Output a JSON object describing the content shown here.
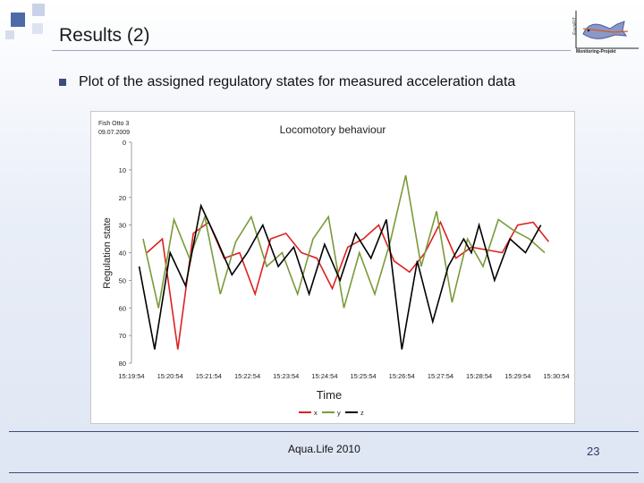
{
  "slide": {
    "title": "Results (2)",
    "bullet": "Plot of the assigned regulatory states for measured acceleration data",
    "footer": "Aqua.Life 2010",
    "page_number": "23",
    "logo": {
      "vertical_text": "FischFIT",
      "caption": "Monitoring-Projekt"
    }
  },
  "colors": {
    "accent": "#3b4d7e",
    "x": "#e02020",
    "y": "#7a9a3a",
    "z": "#000000"
  },
  "chart_data": {
    "type": "line",
    "title": "Locomotory behaviour",
    "annotation": [
      "Fish Otto 3",
      "09.07.2009"
    ],
    "xlabel": "Time",
    "ylabel": "Regulation state",
    "y_inverted": true,
    "ylim": [
      0,
      80
    ],
    "yticks": [
      0,
      10,
      20,
      30,
      40,
      50,
      60,
      70,
      80
    ],
    "xticks": [
      "15:19:54",
      "15:20:54",
      "15:21:54",
      "15:22:54",
      "15:23:54",
      "15:24:54",
      "15:25:54",
      "15:26:54",
      "15:27:54",
      "15:28:54",
      "15:29:54",
      "15:30:54"
    ],
    "xlim_minutes": [
      0,
      11
    ],
    "grid": false,
    "legend_position": "bottom",
    "series": [
      {
        "name": "x",
        "color": "#e02020",
        "x": [
          0.4,
          0.8,
          1.2,
          1.6,
          2.0,
          2.4,
          2.8,
          3.2,
          3.6,
          4.0,
          4.4,
          4.8,
          5.2,
          5.6,
          6.0,
          6.4,
          6.8,
          7.2,
          7.6,
          8.0,
          8.4,
          8.8,
          9.2,
          9.6,
          10.0,
          10.4,
          10.8
        ],
        "values": [
          40,
          35,
          75,
          33,
          29,
          42,
          40,
          55,
          35,
          33,
          40,
          42,
          53,
          38,
          35,
          30,
          43,
          47,
          40,
          29,
          42,
          38,
          39,
          40,
          30,
          29,
          36
        ]
      },
      {
        "name": "y",
        "color": "#7a9a3a",
        "x": [
          0.3,
          0.7,
          1.1,
          1.5,
          1.9,
          2.3,
          2.7,
          3.1,
          3.5,
          3.9,
          4.3,
          4.7,
          5.1,
          5.5,
          5.9,
          6.3,
          6.7,
          7.1,
          7.5,
          7.9,
          8.3,
          8.7,
          9.1,
          9.5,
          9.9,
          10.3,
          10.7
        ],
        "values": [
          35,
          60,
          28,
          42,
          27,
          55,
          36,
          27,
          45,
          40,
          55,
          35,
          27,
          60,
          40,
          55,
          36,
          12,
          45,
          25,
          58,
          35,
          45,
          28,
          32,
          35,
          40
        ]
      },
      {
        "name": "z",
        "color": "#000000",
        "x": [
          0.2,
          0.6,
          1.0,
          1.4,
          1.8,
          2.2,
          2.6,
          3.0,
          3.4,
          3.8,
          4.2,
          4.6,
          5.0,
          5.4,
          5.8,
          6.2,
          6.6,
          7.0,
          7.4,
          7.8,
          8.2,
          8.6,
          8.8,
          9.0,
          9.4,
          9.8,
          10.2,
          10.6
        ],
        "values": [
          45,
          75,
          40,
          52,
          23,
          35,
          48,
          40,
          30,
          45,
          38,
          55,
          37,
          50,
          33,
          42,
          28,
          75,
          43,
          65,
          45,
          35,
          40,
          30,
          50,
          35,
          40,
          30
        ]
      }
    ]
  }
}
